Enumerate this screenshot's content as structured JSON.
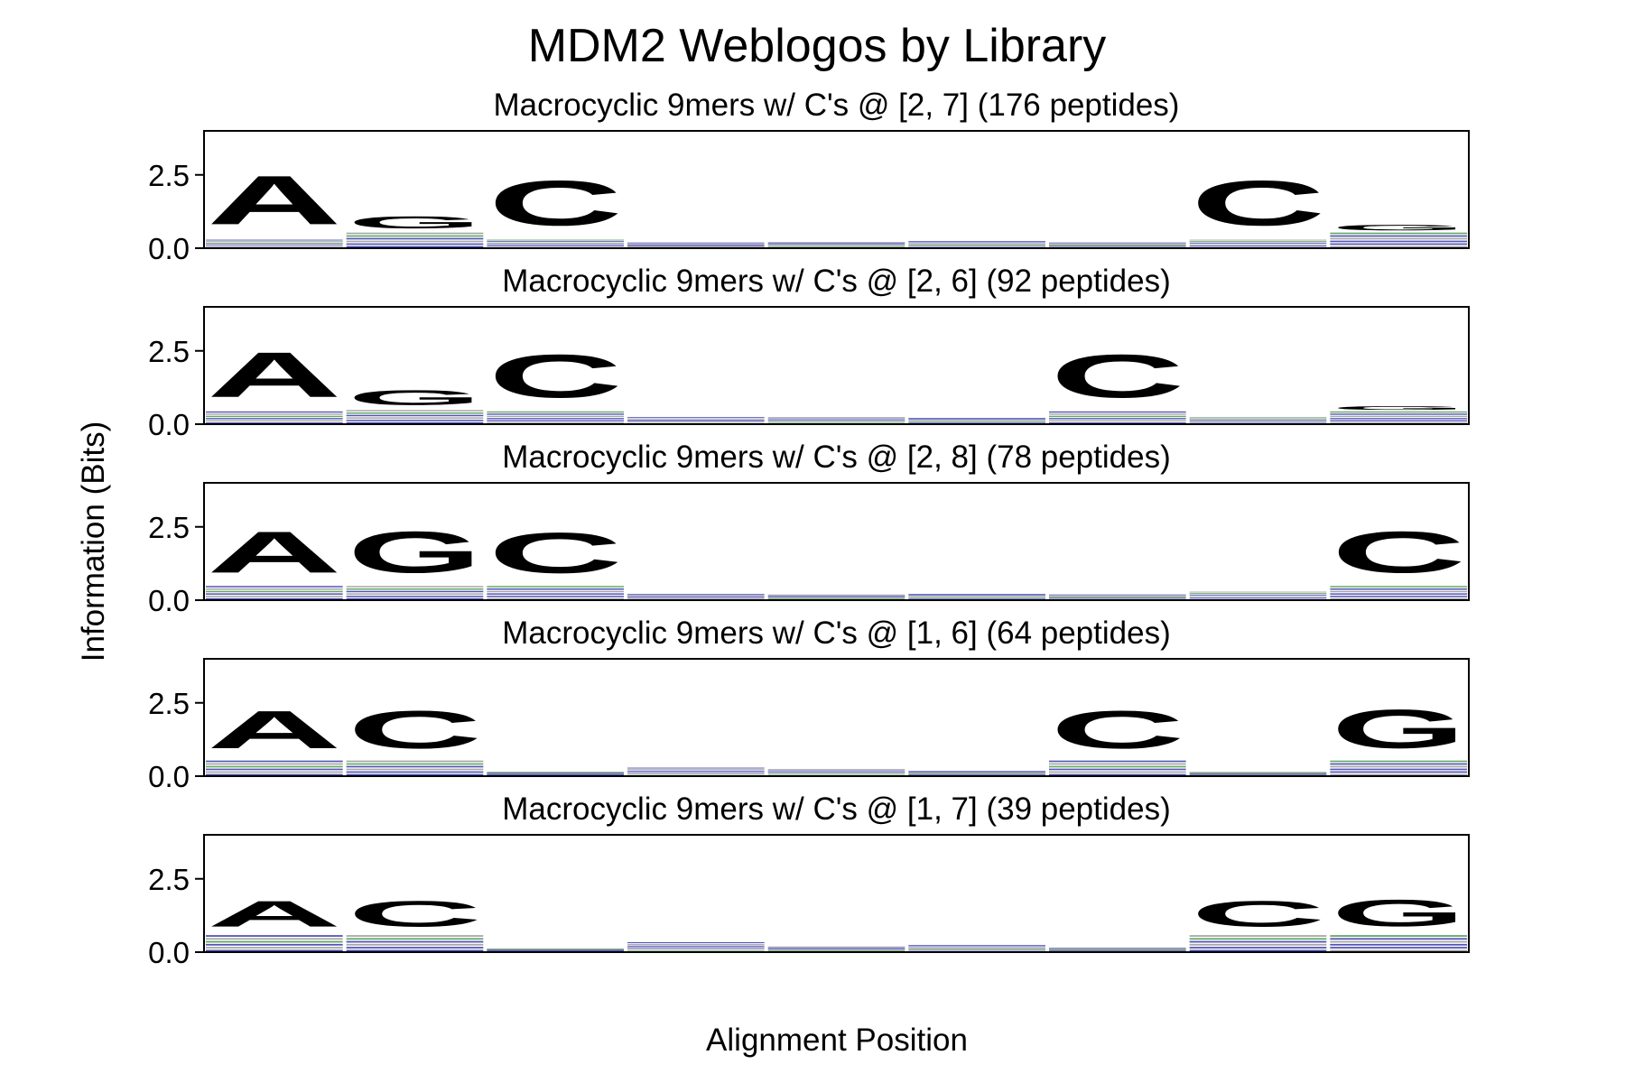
{
  "figure": {
    "title": "MDM2 Weblogos by Library",
    "xlabel": "Alignment Position",
    "ylabel": "Information (Bits)"
  },
  "colors": {
    "A": "#008000",
    "G": "#008000",
    "C": "#000000",
    "noise_blue": "#1a1aa0",
    "noise_green": "#2e8b2e",
    "noise_gray": "#888888"
  },
  "chart_data": [
    {
      "type": "logo",
      "title": "Macrocyclic 9mers w/ C's @ [2, 7] (176 peptides)",
      "ylim": [
        0,
        4
      ],
      "yticks": [
        "0.0",
        "2.5"
      ],
      "ytick_values": [
        0,
        2.5
      ],
      "positions": 9,
      "columns": [
        {
          "letter": "A",
          "height": 2.65,
          "base": 0.3
        },
        {
          "letter": "G",
          "height": 0.65,
          "base": 0.55
        },
        {
          "letter": "C",
          "height": 2.45,
          "base": 0.3
        },
        {
          "letter": "",
          "height": 0,
          "base": 0.2
        },
        {
          "letter": "",
          "height": 0,
          "base": 0.22
        },
        {
          "letter": "",
          "height": 0,
          "base": 0.25
        },
        {
          "letter": "",
          "height": 0,
          "base": 0.2
        },
        {
          "letter": "C",
          "height": 2.45,
          "base": 0.3
        },
        {
          "letter": "G",
          "height": 0.3,
          "base": 0.55
        }
      ]
    },
    {
      "type": "logo",
      "title": "Macrocyclic 9mers w/ C's @ [2, 6] (92 peptides)",
      "ylim": [
        0,
        4
      ],
      "yticks": [
        "0.0",
        "2.5"
      ],
      "ytick_values": [
        0,
        2.5
      ],
      "positions": 9,
      "columns": [
        {
          "letter": "A",
          "height": 2.45,
          "base": 0.45
        },
        {
          "letter": "G",
          "height": 0.8,
          "base": 0.5
        },
        {
          "letter": "C",
          "height": 2.35,
          "base": 0.45
        },
        {
          "letter": "",
          "height": 0,
          "base": 0.25
        },
        {
          "letter": "",
          "height": 0,
          "base": 0.25
        },
        {
          "letter": "",
          "height": 0,
          "base": 0.22
        },
        {
          "letter": "C",
          "height": 2.35,
          "base": 0.45
        },
        {
          "letter": "",
          "height": 0,
          "base": 0.25
        },
        {
          "letter": "G",
          "height": 0.2,
          "base": 0.45
        }
      ]
    },
    {
      "type": "logo",
      "title": "Macrocyclic 9mers w/ C's @ [2, 8] (78 peptides)",
      "ylim": [
        0,
        4
      ],
      "yticks": [
        "0.0",
        "2.5"
      ],
      "ytick_values": [
        0,
        2.5
      ],
      "positions": 9,
      "columns": [
        {
          "letter": "A",
          "height": 2.25,
          "base": 0.5
        },
        {
          "letter": "G",
          "height": 2.25,
          "base": 0.5
        },
        {
          "letter": "C",
          "height": 2.2,
          "base": 0.5
        },
        {
          "letter": "",
          "height": 0,
          "base": 0.22
        },
        {
          "letter": "",
          "height": 0,
          "base": 0.2
        },
        {
          "letter": "",
          "height": 0,
          "base": 0.22
        },
        {
          "letter": "",
          "height": 0,
          "base": 0.2
        },
        {
          "letter": "",
          "height": 0,
          "base": 0.3
        },
        {
          "letter": "C",
          "height": 2.25,
          "base": 0.5
        }
      ]
    },
    {
      "type": "logo",
      "title": "Macrocyclic 9mers w/ C's @ [1, 6] (64 peptides)",
      "ylim": [
        0,
        4
      ],
      "yticks": [
        "0.0",
        "2.5"
      ],
      "ytick_values": [
        0,
        2.5
      ],
      "positions": 9,
      "columns": [
        {
          "letter": "A",
          "height": 2.05,
          "base": 0.55
        },
        {
          "letter": "C",
          "height": 2.05,
          "base": 0.55
        },
        {
          "letter": "",
          "height": 0,
          "base": 0.15
        },
        {
          "letter": "",
          "height": 0,
          "base": 0.3
        },
        {
          "letter": "",
          "height": 0,
          "base": 0.25
        },
        {
          "letter": "",
          "height": 0,
          "base": 0.18
        },
        {
          "letter": "C",
          "height": 2.05,
          "base": 0.55
        },
        {
          "letter": "",
          "height": 0,
          "base": 0.15
        },
        {
          "letter": "G",
          "height": 2.1,
          "base": 0.55
        }
      ]
    },
    {
      "type": "logo",
      "title": "Macrocyclic 9mers w/ C's @ [1, 7] (39 peptides)",
      "ylim": [
        0,
        4
      ],
      "yticks": [
        "0.0",
        "2.5"
      ],
      "ytick_values": [
        0,
        2.5
      ],
      "positions": 9,
      "columns": [
        {
          "letter": "A",
          "height": 1.4,
          "base": 0.6
        },
        {
          "letter": "C",
          "height": 1.4,
          "base": 0.6
        },
        {
          "letter": "",
          "height": 0,
          "base": 0.12
        },
        {
          "letter": "",
          "height": 0,
          "base": 0.35
        },
        {
          "letter": "",
          "height": 0,
          "base": 0.2
        },
        {
          "letter": "",
          "height": 0,
          "base": 0.25
        },
        {
          "letter": "",
          "height": 0,
          "base": 0.15
        },
        {
          "letter": "C",
          "height": 1.4,
          "base": 0.6
        },
        {
          "letter": "G",
          "height": 1.45,
          "base": 0.6
        }
      ]
    }
  ]
}
